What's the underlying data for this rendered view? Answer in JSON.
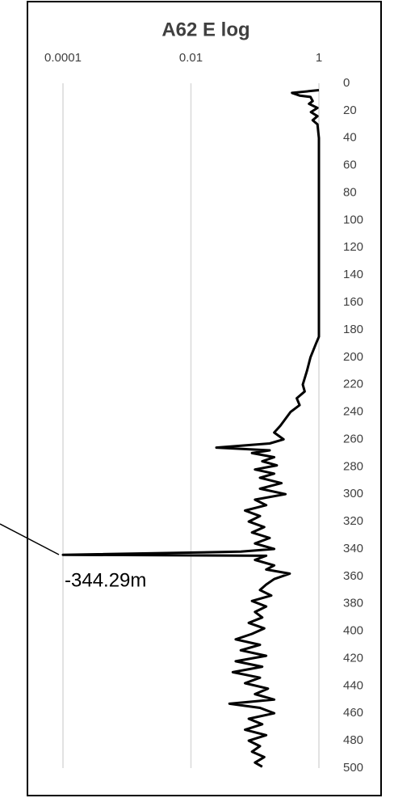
{
  "chart_data": {
    "type": "line",
    "title": "A62 E log",
    "annotation": "-344.29m",
    "xlog": true,
    "yinvert": true,
    "grid": true,
    "xlim": [
      0.0001,
      1
    ],
    "xticks": [
      0.0001,
      0.01,
      1
    ],
    "ylim": [
      0,
      500
    ],
    "yticks": [
      0,
      20,
      40,
      60,
      80,
      100,
      120,
      140,
      160,
      180,
      200,
      220,
      240,
      260,
      280,
      300,
      320,
      340,
      360,
      380,
      400,
      420,
      440,
      460,
      480,
      500
    ],
    "color": "#000000",
    "y": [
      5,
      7,
      9,
      10,
      13,
      15,
      18,
      21,
      24,
      27,
      30,
      40,
      60,
      100,
      150,
      185,
      190,
      200,
      210,
      220,
      225,
      230,
      235,
      240,
      245,
      250,
      255,
      260,
      263,
      266,
      268,
      270,
      273,
      276,
      279,
      282,
      285,
      288,
      292,
      296,
      300,
      304,
      308,
      312,
      316,
      320,
      324,
      328,
      332,
      336,
      340,
      342,
      344.29,
      345,
      348,
      352,
      355,
      358,
      362,
      366,
      370,
      374,
      378,
      382,
      386,
      390,
      394,
      398,
      402,
      406,
      410,
      414,
      418,
      422,
      426,
      430,
      434,
      438,
      442,
      446,
      450,
      453,
      456,
      460,
      464,
      468,
      472,
      476,
      480,
      484,
      488,
      492,
      496,
      499
    ],
    "values": [
      1,
      0.38,
      0.5,
      0.74,
      0.8,
      0.7,
      0.95,
      0.75,
      0.95,
      0.8,
      0.95,
      1,
      1,
      1,
      1,
      1,
      0.9,
      0.74,
      0.65,
      0.56,
      0.6,
      0.45,
      0.5,
      0.36,
      0.3,
      0.25,
      0.2,
      0.28,
      0.17,
      0.025,
      0.17,
      0.09,
      0.2,
      0.13,
      0.22,
      0.1,
      0.2,
      0.12,
      0.26,
      0.12,
      0.3,
      0.1,
      0.15,
      0.07,
      0.12,
      0.08,
      0.14,
      0.09,
      0.17,
      0.1,
      0.2,
      0.06,
      0.0001,
      0.15,
      0.1,
      0.2,
      0.15,
      0.35,
      0.2,
      0.15,
      0.12,
      0.18,
      0.09,
      0.15,
      0.1,
      0.13,
      0.08,
      0.14,
      0.09,
      0.05,
      0.12,
      0.06,
      0.15,
      0.05,
      0.13,
      0.045,
      0.12,
      0.07,
      0.16,
      0.1,
      0.2,
      0.04,
      0.12,
      0.2,
      0.08,
      0.13,
      0.07,
      0.15,
      0.08,
      0.12,
      0.09,
      0.14,
      0.1,
      0.13
    ]
  }
}
